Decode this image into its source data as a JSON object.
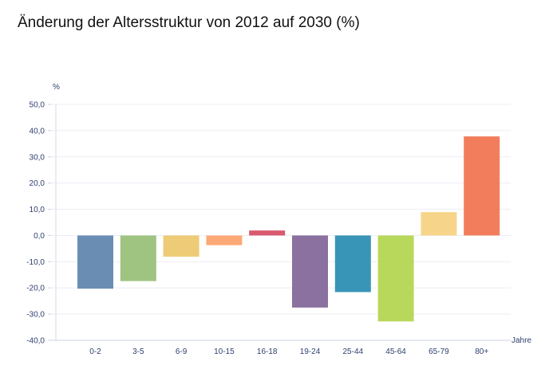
{
  "chart_data": {
    "type": "bar",
    "title": "Änderung der Altersstruktur von 2012 auf 2030 (%)",
    "xlabel": "Jahre",
    "ylabel": "%",
    "ylim": [
      -40,
      50
    ],
    "yticks": [
      50,
      40,
      30,
      20,
      10,
      0,
      -10,
      -20,
      -30,
      -40
    ],
    "ytick_labels": [
      "50,0",
      "40,0",
      "30,0",
      "20,0",
      "10,0",
      "0,0",
      "-10,0",
      "-20,0",
      "-30,0",
      "-40,0"
    ],
    "grid": true,
    "categories": [
      "0-2",
      "3-5",
      "6-9",
      "10-15",
      "16-18",
      "19-24",
      "25-44",
      "45-64",
      "65-79",
      "80+"
    ],
    "values": [
      -20.3,
      -17.4,
      -8.1,
      -3.7,
      1.9,
      -27.5,
      -21.6,
      -32.8,
      8.9,
      37.8
    ],
    "colors": [
      "#6a8db4",
      "#9fc381",
      "#eecb76",
      "#fda877",
      "#d9596f",
      "#8a71a0",
      "#3995b7",
      "#b8d85c",
      "#f6d58a",
      "#f27d5c"
    ]
  }
}
